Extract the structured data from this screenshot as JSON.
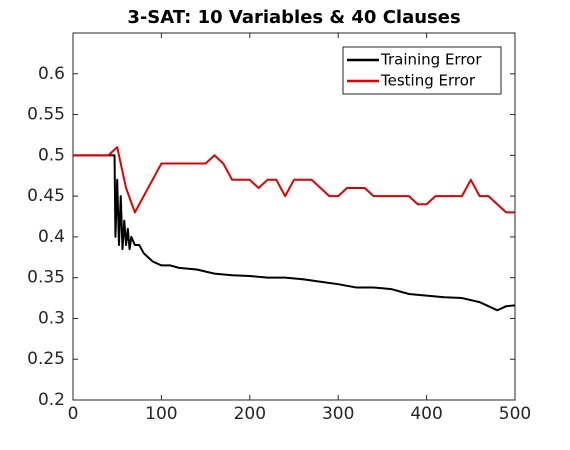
{
  "chart_data": {
    "type": "line",
    "title": "3-SAT: 10 Variables & 40 Clauses",
    "xlim": [
      0,
      500
    ],
    "xticks": [
      0,
      100,
      200,
      300,
      400,
      500
    ],
    "ylim": [
      0.2,
      0.65
    ],
    "yticks": [
      0.2,
      0.25,
      0.3,
      0.35,
      0.4,
      0.45,
      0.5,
      0.55,
      0.6
    ],
    "legend": "upper right",
    "series": [
      {
        "name": "Training Error",
        "color": "#000000",
        "x": [
          0,
          45,
          47,
          48,
          50,
          52,
          54,
          56,
          58,
          60,
          62,
          64,
          66,
          70,
          75,
          80,
          90,
          100,
          110,
          120,
          140,
          160,
          180,
          200,
          220,
          240,
          260,
          280,
          300,
          320,
          340,
          360,
          380,
          400,
          420,
          440,
          460,
          470,
          480,
          490,
          500
        ],
        "values": [
          0.5,
          0.5,
          0.5,
          0.4,
          0.47,
          0.39,
          0.45,
          0.385,
          0.42,
          0.39,
          0.41,
          0.385,
          0.4,
          0.39,
          0.39,
          0.38,
          0.37,
          0.365,
          0.365,
          0.362,
          0.36,
          0.355,
          0.353,
          0.352,
          0.35,
          0.35,
          0.348,
          0.345,
          0.342,
          0.338,
          0.338,
          0.336,
          0.33,
          0.328,
          0.326,
          0.325,
          0.32,
          0.315,
          0.31,
          0.315,
          0.316
        ]
      },
      {
        "name": "Testing Error",
        "color": "#e00000",
        "x": [
          0,
          40,
          50,
          60,
          70,
          100,
          150,
          160,
          170,
          180,
          200,
          210,
          220,
          230,
          240,
          250,
          270,
          290,
          300,
          310,
          330,
          340,
          380,
          390,
          400,
          410,
          440,
          450,
          460,
          470,
          490,
          500
        ],
        "values": [
          0.5,
          0.5,
          0.51,
          0.46,
          0.43,
          0.49,
          0.49,
          0.5,
          0.49,
          0.47,
          0.47,
          0.46,
          0.47,
          0.47,
          0.45,
          0.47,
          0.47,
          0.45,
          0.45,
          0.46,
          0.46,
          0.45,
          0.45,
          0.44,
          0.44,
          0.45,
          0.45,
          0.47,
          0.45,
          0.45,
          0.43,
          0.43
        ]
      }
    ]
  }
}
